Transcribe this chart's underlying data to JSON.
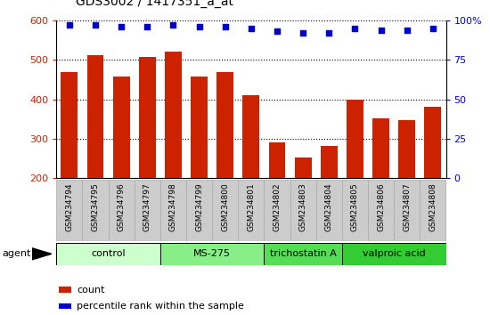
{
  "title": "GDS3002 / 1417351_a_at",
  "samples": [
    "GSM234794",
    "GSM234795",
    "GSM234796",
    "GSM234797",
    "GSM234798",
    "GSM234799",
    "GSM234800",
    "GSM234801",
    "GSM234802",
    "GSM234803",
    "GSM234804",
    "GSM234805",
    "GSM234806",
    "GSM234807",
    "GSM234808"
  ],
  "counts": [
    468,
    511,
    457,
    507,
    522,
    457,
    470,
    410,
    290,
    253,
    281,
    399,
    351,
    347,
    381
  ],
  "percentiles": [
    97,
    97,
    96,
    96,
    97,
    96,
    96,
    95,
    93,
    92,
    92,
    95,
    94,
    94,
    95
  ],
  "bar_color": "#cc2200",
  "dot_color": "#0000cc",
  "ylim_left": [
    200,
    600
  ],
  "ylim_right": [
    0,
    100
  ],
  "yticks_left": [
    200,
    300,
    400,
    500,
    600
  ],
  "yticks_right": [
    0,
    25,
    50,
    75,
    100
  ],
  "yticklabels_right": [
    "0",
    "25",
    "50",
    "75",
    "100%"
  ],
  "groups": [
    {
      "label": "control",
      "start": 0,
      "end": 4,
      "color": "#ccffcc"
    },
    {
      "label": "MS-275",
      "start": 4,
      "end": 8,
      "color": "#88ee88"
    },
    {
      "label": "trichostatin A",
      "start": 8,
      "end": 11,
      "color": "#55dd55"
    },
    {
      "label": "valproic acid",
      "start": 11,
      "end": 15,
      "color": "#33cc33"
    }
  ],
  "xlabel_agent": "agent",
  "legend_count_color": "#cc2200",
  "legend_dot_color": "#0000cc",
  "legend_count_label": "count",
  "legend_dot_label": "percentile rank within the sample",
  "background_color": "#ffffff",
  "sample_bg_color": "#cccccc",
  "sample_border_color": "#aaaaaa"
}
